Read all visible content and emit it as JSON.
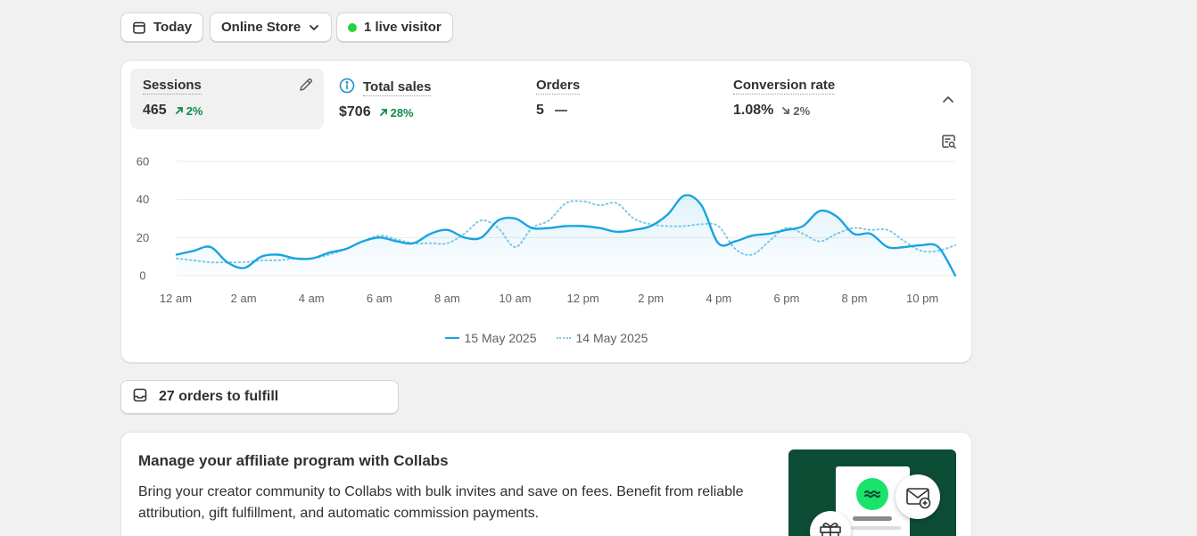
{
  "toolbar": {
    "date_label": "Today",
    "channel_label": "Online Store",
    "live_label": "1 live visitor",
    "live_color": "#22d43b"
  },
  "metrics": [
    {
      "title": "Sessions",
      "value": "465",
      "change": "2%",
      "direction": "up"
    },
    {
      "title": "Total sales",
      "value": "$706",
      "change": "28%",
      "direction": "up"
    },
    {
      "title": "Orders",
      "value": "5",
      "change": "",
      "direction": "flat"
    },
    {
      "title": "Conversion rate",
      "value": "1.08%",
      "change": "2%",
      "direction": "down"
    }
  ],
  "chart_data": {
    "type": "line",
    "x_ticks": [
      "12 am",
      "2 am",
      "4 am",
      "6 am",
      "8 am",
      "10 am",
      "12 pm",
      "2 pm",
      "4 pm",
      "6 pm",
      "8 pm",
      "10 pm"
    ],
    "ylim": [
      0,
      60
    ],
    "y_ticks": [
      0,
      20,
      40,
      60
    ],
    "grid": true,
    "legend_position": "bottom-center",
    "x_hours": [
      0,
      0.5,
      1,
      1.5,
      2,
      2.5,
      3,
      3.5,
      4,
      4.5,
      5,
      5.5,
      6,
      6.5,
      7,
      7.5,
      8,
      8.5,
      9,
      9.5,
      10,
      10.5,
      11,
      11.5,
      12,
      12.5,
      13,
      13.5,
      14,
      14.5,
      15,
      15.5,
      16,
      16.5,
      17,
      17.5,
      18,
      18.5,
      19,
      19.5,
      20,
      20.5,
      21,
      21.5,
      22,
      22.5,
      23
    ],
    "series": [
      {
        "name": "15 May 2025",
        "style": "solid",
        "color": "#1aa3e0",
        "values": [
          11,
          13,
          15,
          7,
          4,
          10,
          11,
          9,
          9,
          12,
          14,
          18,
          20,
          18,
          17,
          22,
          24,
          20,
          20,
          29,
          30,
          25,
          25,
          26,
          26,
          25,
          23,
          24,
          26,
          32,
          42,
          37,
          17,
          18,
          21,
          22,
          24,
          26,
          34,
          31,
          22,
          22,
          15,
          15,
          16,
          15,
          0
        ]
      },
      {
        "name": "14 May 2025",
        "style": "dotted",
        "color": "#7cc8e6",
        "values": [
          9,
          8,
          7,
          7,
          7,
          8,
          8,
          9,
          9,
          11,
          14,
          18,
          21,
          19,
          17,
          17,
          17,
          22,
          29,
          25,
          15,
          25,
          29,
          38,
          39,
          37,
          38,
          30,
          27,
          26,
          26,
          27,
          26,
          14,
          11,
          18,
          25,
          22,
          18,
          22,
          25,
          24,
          24,
          18,
          13,
          13,
          16
        ]
      }
    ]
  },
  "fulfill": {
    "label": "27 orders to fulfill"
  },
  "promo": {
    "title": "Manage your affiliate program with Collabs",
    "body": "Bring your creator community to Collabs with bulk invites and save on fees. Benefit from reliable attribution, gift fulfillment, and automatic commission payments.",
    "art_bg": "#0d4d36",
    "logo_color": "#19e36a"
  }
}
